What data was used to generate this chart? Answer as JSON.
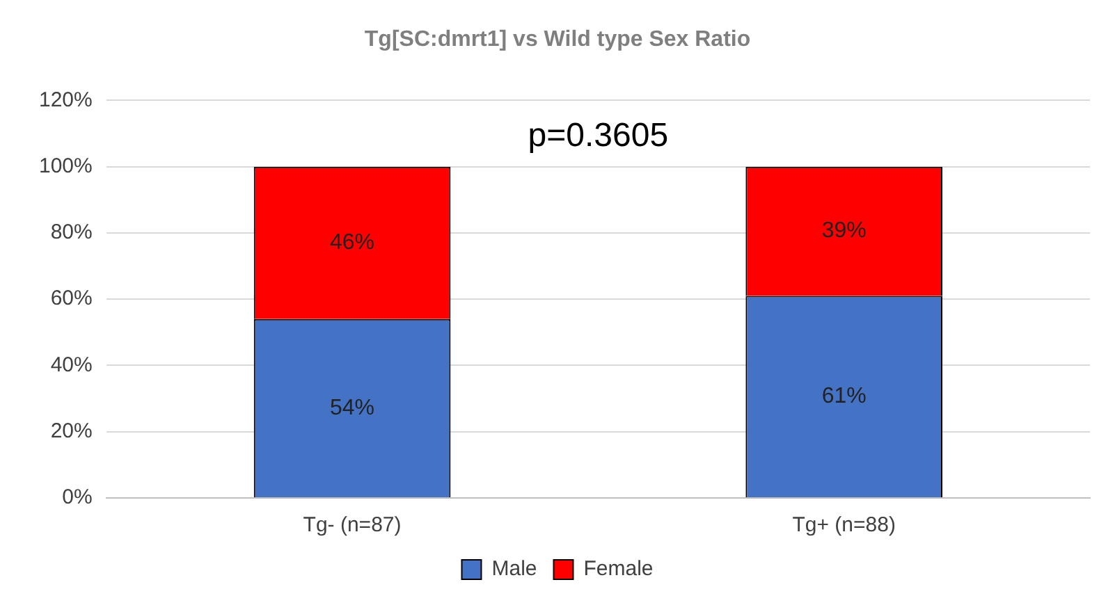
{
  "chart_data": {
    "type": "bar",
    "title": "Tg[SC:dmrt1] vs Wild type Sex Ratio",
    "categories": [
      "Tg- (n=87)",
      "Tg+ (n=88)"
    ],
    "series": [
      {
        "name": "Male",
        "color": "#4472c4",
        "values": [
          54,
          61
        ],
        "value_labels": [
          "54%",
          "61%"
        ]
      },
      {
        "name": "Female",
        "color": "#ff0000",
        "values": [
          46,
          39
        ],
        "value_labels": [
          "46%",
          "39%"
        ]
      }
    ],
    "stacked": true,
    "ylim": [
      0,
      120
    ],
    "yticks": [
      {
        "value": 0,
        "label": "0%"
      },
      {
        "value": 20,
        "label": "20%"
      },
      {
        "value": 40,
        "label": "40%"
      },
      {
        "value": 60,
        "label": "60%"
      },
      {
        "value": 80,
        "label": "80%"
      },
      {
        "value": 100,
        "label": "100%"
      },
      {
        "value": 120,
        "label": "120%"
      }
    ],
    "grid": "y",
    "legend": "bottom",
    "annotations": [
      "p=0.3605"
    ]
  }
}
